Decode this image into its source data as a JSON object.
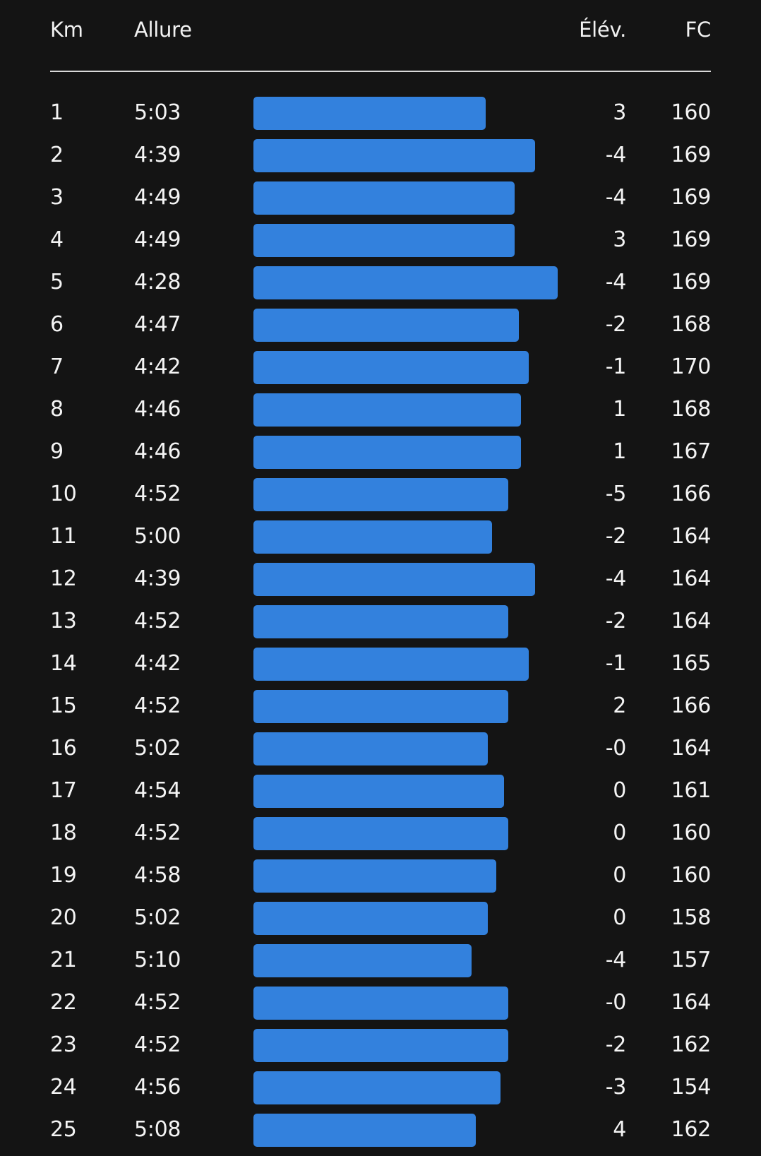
{
  "header": {
    "km": "Km",
    "pace": "Allure",
    "elevation": "Élév.",
    "heart_rate": "FC"
  },
  "colors": {
    "background": "#141414",
    "bar": "#3381dd",
    "text": "#f4f4f4",
    "divider": "#d8d8d8"
  },
  "splits": [
    {
      "km": "1",
      "pace": "5:03",
      "elev": "3",
      "hr": "160"
    },
    {
      "km": "2",
      "pace": "4:39",
      "elev": "-4",
      "hr": "169"
    },
    {
      "km": "3",
      "pace": "4:49",
      "elev": "-4",
      "hr": "169"
    },
    {
      "km": "4",
      "pace": "4:49",
      "elev": "3",
      "hr": "169"
    },
    {
      "km": "5",
      "pace": "4:28",
      "elev": "-4",
      "hr": "169"
    },
    {
      "km": "6",
      "pace": "4:47",
      "elev": "-2",
      "hr": "168"
    },
    {
      "km": "7",
      "pace": "4:42",
      "elev": "-1",
      "hr": "170"
    },
    {
      "km": "8",
      "pace": "4:46",
      "elev": "1",
      "hr": "168"
    },
    {
      "km": "9",
      "pace": "4:46",
      "elev": "1",
      "hr": "167"
    },
    {
      "km": "10",
      "pace": "4:52",
      "elev": "-5",
      "hr": "166"
    },
    {
      "km": "11",
      "pace": "5:00",
      "elev": "-2",
      "hr": "164"
    },
    {
      "km": "12",
      "pace": "4:39",
      "elev": "-4",
      "hr": "164"
    },
    {
      "km": "13",
      "pace": "4:52",
      "elev": "-2",
      "hr": "164"
    },
    {
      "km": "14",
      "pace": "4:42",
      "elev": "-1",
      "hr": "165"
    },
    {
      "km": "15",
      "pace": "4:52",
      "elev": "2",
      "hr": "166"
    },
    {
      "km": "16",
      "pace": "5:02",
      "elev": "-0",
      "hr": "164"
    },
    {
      "km": "17",
      "pace": "4:54",
      "elev": "0",
      "hr": "161"
    },
    {
      "km": "18",
      "pace": "4:52",
      "elev": "0",
      "hr": "160"
    },
    {
      "km": "19",
      "pace": "4:58",
      "elev": "0",
      "hr": "160"
    },
    {
      "km": "20",
      "pace": "5:02",
      "elev": "0",
      "hr": "158"
    },
    {
      "km": "21",
      "pace": "5:10",
      "elev": "-4",
      "hr": "157"
    },
    {
      "km": "22",
      "pace": "4:52",
      "elev": "-0",
      "hr": "164"
    },
    {
      "km": "23",
      "pace": "4:52",
      "elev": "-2",
      "hr": "162"
    },
    {
      "km": "24",
      "pace": "4:56",
      "elev": "-3",
      "hr": "154"
    },
    {
      "km": "25",
      "pace": "5:08",
      "elev": "4",
      "hr": "162"
    }
  ]
}
